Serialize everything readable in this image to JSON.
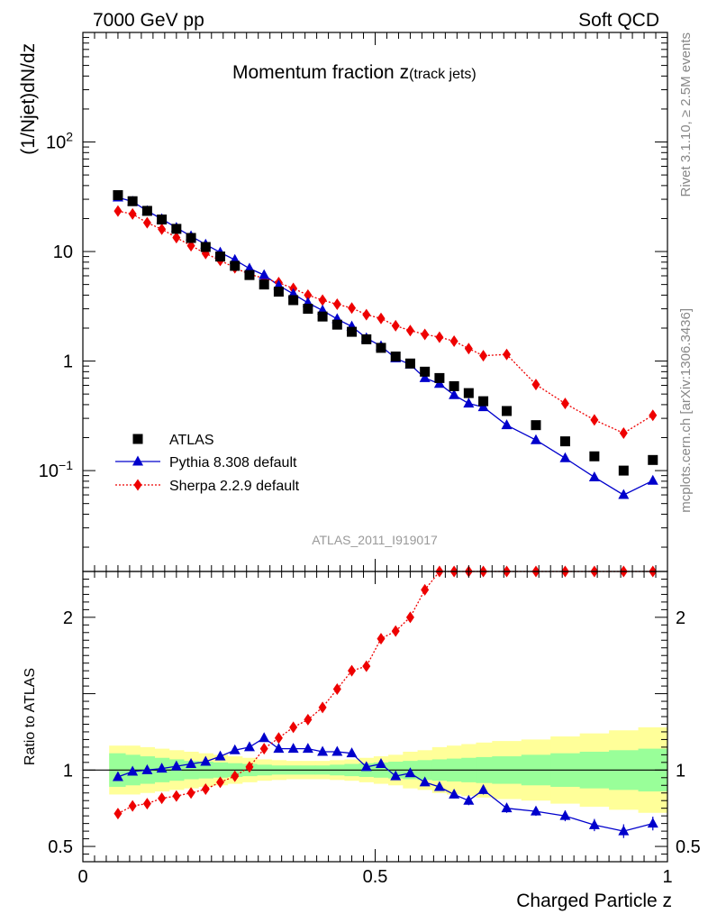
{
  "header": {
    "left": "7000 GeV pp",
    "right": "Soft QCD"
  },
  "side_labels": {
    "top": "Rivet 3.1.10, ≥ 2.5M events",
    "bottom": "mcplots.cern.ch [arXiv:1306.3436]"
  },
  "chart_data": {
    "type": "scatter",
    "title_main": "Momentum fraction ",
    "title_z": "z",
    "title_sub": "(track jets)",
    "analysis_id": "ATLAS_2011_I919017",
    "xlabel": "Charged Particle z",
    "ylabel_main": "(1/Njet)dN/dz",
    "ylabel_ratio": "Ratio to ATLAS",
    "xlim": [
      0,
      1.0
    ],
    "ylim_main": [
      0.012,
      1000
    ],
    "yscale_main": "log",
    "ylim_ratio": [
      0.4,
      2.3
    ],
    "x_ticks": [
      {
        "v": 0,
        "t": "0"
      },
      {
        "v": 0.5,
        "t": "0.5"
      },
      {
        "v": 1,
        "t": "1"
      }
    ],
    "y_ticks_main": [
      {
        "v": 0.1,
        "base": "10",
        "sup": "−1"
      },
      {
        "v": 1,
        "base": "1",
        "sup": ""
      },
      {
        "v": 10,
        "base": "10",
        "sup": ""
      },
      {
        "v": 100,
        "base": "10",
        "sup": "2"
      }
    ],
    "y_ticks_ratio": [
      {
        "v": 0.5,
        "t": "0.5"
      },
      {
        "v": 1,
        "t": "1"
      },
      {
        "v": 2,
        "t": "2"
      }
    ],
    "legend": [
      {
        "name": "ATLAS",
        "marker": "square",
        "color": "#000000"
      },
      {
        "name": "Pythia 8.308 default",
        "marker": "triangle",
        "color": "#0000cc"
      },
      {
        "name": "Sherpa 2.2.9 default",
        "marker": "diamond",
        "color": "#ee0000"
      }
    ],
    "x": [
      0.06,
      0.085,
      0.11,
      0.135,
      0.16,
      0.185,
      0.21,
      0.235,
      0.26,
      0.285,
      0.31,
      0.335,
      0.36,
      0.385,
      0.41,
      0.435,
      0.46,
      0.485,
      0.51,
      0.535,
      0.56,
      0.585,
      0.61,
      0.635,
      0.66,
      0.685,
      0.725,
      0.775,
      0.825,
      0.875,
      0.925,
      0.975
    ],
    "atlas": [
      32.7,
      28.8,
      23.5,
      19.6,
      16.1,
      13.3,
      11.0,
      9.0,
      7.4,
      6.1,
      5.0,
      4.3,
      3.6,
      3.0,
      2.55,
      2.15,
      1.85,
      1.58,
      1.32,
      1.1,
      0.95,
      0.8,
      0.7,
      0.59,
      0.51,
      0.43,
      0.35,
      0.26,
      0.185,
      0.135,
      0.1,
      0.125
    ],
    "pythia": [
      31.2,
      28.6,
      23.5,
      19.8,
      16.5,
      13.8,
      11.6,
      9.8,
      8.4,
      7.0,
      6.1,
      4.9,
      4.1,
      3.4,
      2.9,
      2.42,
      2.07,
      1.62,
      1.37,
      1.06,
      0.93,
      0.7,
      0.62,
      0.49,
      0.41,
      0.38,
      0.26,
      0.19,
      0.13,
      0.087,
      0.06,
      0.081
    ],
    "sherpa": [
      23.4,
      22.0,
      18.3,
      16.0,
      13.4,
      11.3,
      9.6,
      8.3,
      7.1,
      6.2,
      5.7,
      5.2,
      4.6,
      4.0,
      3.6,
      3.3,
      3.05,
      2.65,
      2.45,
      2.1,
      1.9,
      1.75,
      1.65,
      1.52,
      1.3,
      1.12,
      1.15,
      0.61,
      0.41,
      0.29,
      0.22,
      0.32
    ],
    "ratio_pythia": [
      0.955,
      0.99,
      1.0,
      1.01,
      1.025,
      1.04,
      1.055,
      1.09,
      1.13,
      1.15,
      1.21,
      1.14,
      1.14,
      1.14,
      1.12,
      1.12,
      1.11,
      1.02,
      1.04,
      0.96,
      0.98,
      0.92,
      0.89,
      0.84,
      0.8,
      0.87,
      0.75,
      0.73,
      0.7,
      0.64,
      0.6,
      0.65
    ],
    "ratio_pythia_err": [
      0.01,
      0.01,
      0.01,
      0.01,
      0.01,
      0.01,
      0.01,
      0.01,
      0.01,
      0.01,
      0.01,
      0.01,
      0.01,
      0.01,
      0.01,
      0.01,
      0.015,
      0.015,
      0.015,
      0.02,
      0.02,
      0.02,
      0.025,
      0.025,
      0.03,
      0.03,
      0.03,
      0.03,
      0.035,
      0.04,
      0.045,
      0.045
    ],
    "ratio_sherpa": [
      0.715,
      0.765,
      0.78,
      0.815,
      0.83,
      0.85,
      0.875,
      0.92,
      0.96,
      1.02,
      1.14,
      1.21,
      1.28,
      1.33,
      1.41,
      1.53,
      1.65,
      1.68,
      1.86,
      1.91,
      2.0,
      2.18,
      2.36,
      2.57,
      2.55,
      2.6,
      3.28,
      2.35,
      3.05,
      3.0,
      3.1,
      3.78
    ],
    "ratio_sherpa_err": [
      0.01,
      0.01,
      0.01,
      0.01,
      0.01,
      0.01,
      0.01,
      0.01,
      0.01,
      0.01,
      0.01,
      0.015,
      0.015,
      0.015,
      0.02,
      0.02,
      0.02,
      0.02,
      0.025,
      0.025,
      0.03,
      0.03,
      0.03,
      0.035,
      0.04,
      0.04,
      0.05,
      0.05,
      0.05,
      0.06,
      0.06,
      0.07
    ],
    "band_edges": [
      0.045,
      0.0725,
      0.0975,
      0.1225,
      0.1475,
      0.1725,
      0.1975,
      0.2225,
      0.2475,
      0.2725,
      0.2975,
      0.3225,
      0.3475,
      0.3725,
      0.3975,
      0.4225,
      0.4475,
      0.4725,
      0.4975,
      0.5225,
      0.5475,
      0.5725,
      0.5975,
      0.6225,
      0.6475,
      0.6725,
      0.7,
      0.75,
      0.8,
      0.85,
      0.9,
      0.95,
      1.0
    ],
    "band_yellow_half": [
      0.16,
      0.16,
      0.15,
      0.14,
      0.13,
      0.12,
      0.11,
      0.1,
      0.09,
      0.08,
      0.07,
      0.065,
      0.06,
      0.06,
      0.06,
      0.065,
      0.07,
      0.08,
      0.09,
      0.1,
      0.12,
      0.13,
      0.15,
      0.16,
      0.17,
      0.18,
      0.19,
      0.2,
      0.22,
      0.24,
      0.26,
      0.28
    ],
    "band_green_half": [
      0.11,
      0.1,
      0.09,
      0.08,
      0.07,
      0.06,
      0.055,
      0.05,
      0.045,
      0.04,
      0.035,
      0.03,
      0.03,
      0.03,
      0.03,
      0.035,
      0.04,
      0.045,
      0.05,
      0.055,
      0.06,
      0.065,
      0.07,
      0.075,
      0.08,
      0.085,
      0.09,
      0.1,
      0.11,
      0.12,
      0.13,
      0.14
    ],
    "colors": {
      "atlas": "#000000",
      "pythia": "#0000cc",
      "sherpa": "#ee0000",
      "band_yellow": "#ffff99",
      "band_green": "#99ff99",
      "analysis_id": "#999999"
    }
  }
}
